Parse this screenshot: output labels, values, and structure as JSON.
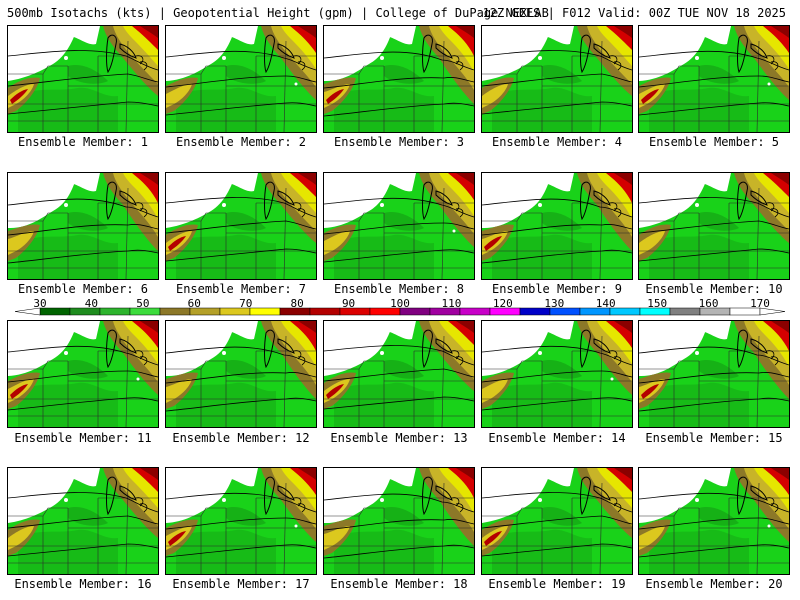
{
  "header": {
    "title": "500mb Isotachs (kts) | Geopotential Height (gpm) | College of DuPage NEXLAB",
    "run_info": "12Z GEFS | F012 Valid: 00Z TUE NOV 18 2025"
  },
  "members": [
    "Ensemble Member: 1",
    "Ensemble Member: 2",
    "Ensemble Member: 3",
    "Ensemble Member: 4",
    "Ensemble Member: 5",
    "Ensemble Member: 6",
    "Ensemble Member: 7",
    "Ensemble Member: 8",
    "Ensemble Member: 9",
    "Ensemble Member: 10",
    "Ensemble Member: 11",
    "Ensemble Member: 12",
    "Ensemble Member: 13",
    "Ensemble Member: 14",
    "Ensemble Member: 15",
    "Ensemble Member: 16",
    "Ensemble Member: 17",
    "Ensemble Member: 18",
    "Ensemble Member: 19",
    "Ensemble Member: 20"
  ],
  "scale": {
    "labels": [
      "30",
      "40",
      "50",
      "60",
      "70",
      "80",
      "90",
      "100",
      "110",
      "120",
      "130",
      "140",
      "150",
      "160",
      "170"
    ],
    "colors": [
      "#006400",
      "#1e8c1e",
      "#2db42d",
      "#3cdc3c",
      "#8c7828",
      "#b4a028",
      "#dcc81e",
      "#ffff00",
      "#8b0000",
      "#b40000",
      "#dc0000",
      "#ff0000",
      "#800080",
      "#a000a0",
      "#c800c8",
      "#ff00ff",
      "#0000c8",
      "#0050ff",
      "#0096ff",
      "#00c8ff",
      "#00ffff",
      "#808080",
      "#b4b4b4",
      "#ffffff"
    ]
  }
}
